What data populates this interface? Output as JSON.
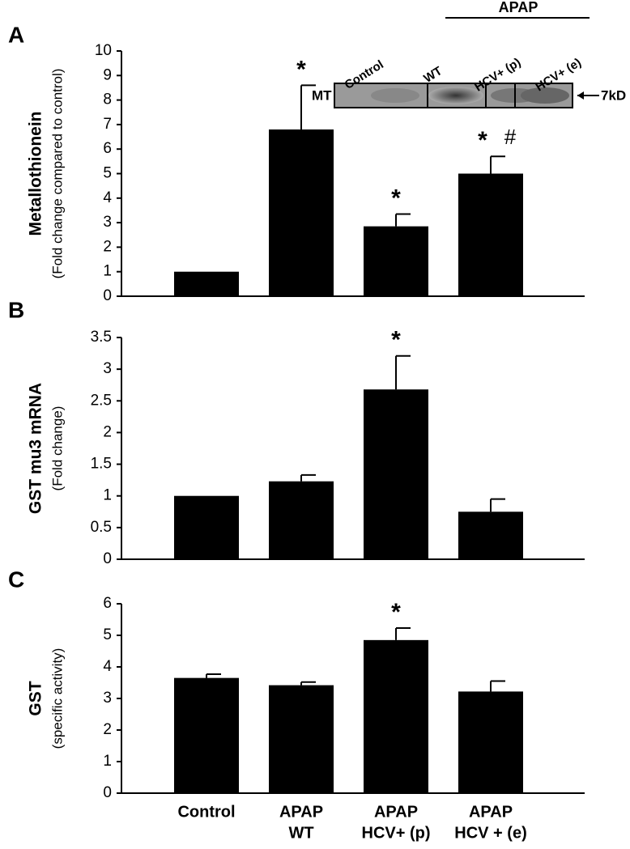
{
  "chart_data": [
    {
      "type": "bar",
      "panel": "A",
      "ylabel": "Metallothionein",
      "ylabel2": "(Fold change compared to control)",
      "values": [
        1,
        6.8,
        2.85,
        5.0
      ],
      "error": [
        0,
        1.8,
        0.5,
        0.7
      ],
      "color": "#000000",
      "ylim": [
        0,
        10
      ],
      "yticks": [
        0,
        1,
        2,
        3,
        4,
        5,
        6,
        7,
        8,
        9,
        10
      ],
      "significance": [
        null,
        "*",
        "*",
        "*"
      ],
      "significance2": [
        null,
        null,
        null,
        "#"
      ],
      "inset": {
        "group": "APAP",
        "lanes": [
          "Control",
          "WT",
          "HCV+ (p)",
          "HCV+ (e)"
        ],
        "band": "MT",
        "size": "7kD"
      }
    },
    {
      "type": "bar",
      "panel": "B",
      "ylabel": "GST mu3 mRNA",
      "ylabel2": "(Fold change)",
      "values": [
        1.0,
        1.23,
        2.68,
        0.75
      ],
      "error": [
        0,
        0.1,
        0.53,
        0.2
      ],
      "color": "#000000",
      "ylim": [
        0,
        3.5
      ],
      "yticks": [
        0,
        0.5,
        1,
        1.5,
        2,
        2.5,
        3,
        3.5
      ],
      "significance": [
        null,
        null,
        "*",
        null
      ]
    },
    {
      "type": "bar",
      "panel": "C",
      "ylabel": "GST",
      "ylabel2": "(specific activity)",
      "values": [
        3.65,
        3.42,
        4.85,
        3.22
      ],
      "error": [
        0.12,
        0.1,
        0.38,
        0.33
      ],
      "color": "#000000",
      "ylim": [
        0,
        6
      ],
      "yticks": [
        0,
        1,
        2,
        3,
        4,
        5,
        6
      ],
      "significance": [
        null,
        null,
        "*",
        null
      ],
      "categories": [
        [
          "Control"
        ],
        [
          "APAP",
          "WT"
        ],
        [
          "APAP",
          "HCV+ (p)"
        ],
        [
          "APAP",
          "HCV + (e)"
        ]
      ]
    }
  ]
}
